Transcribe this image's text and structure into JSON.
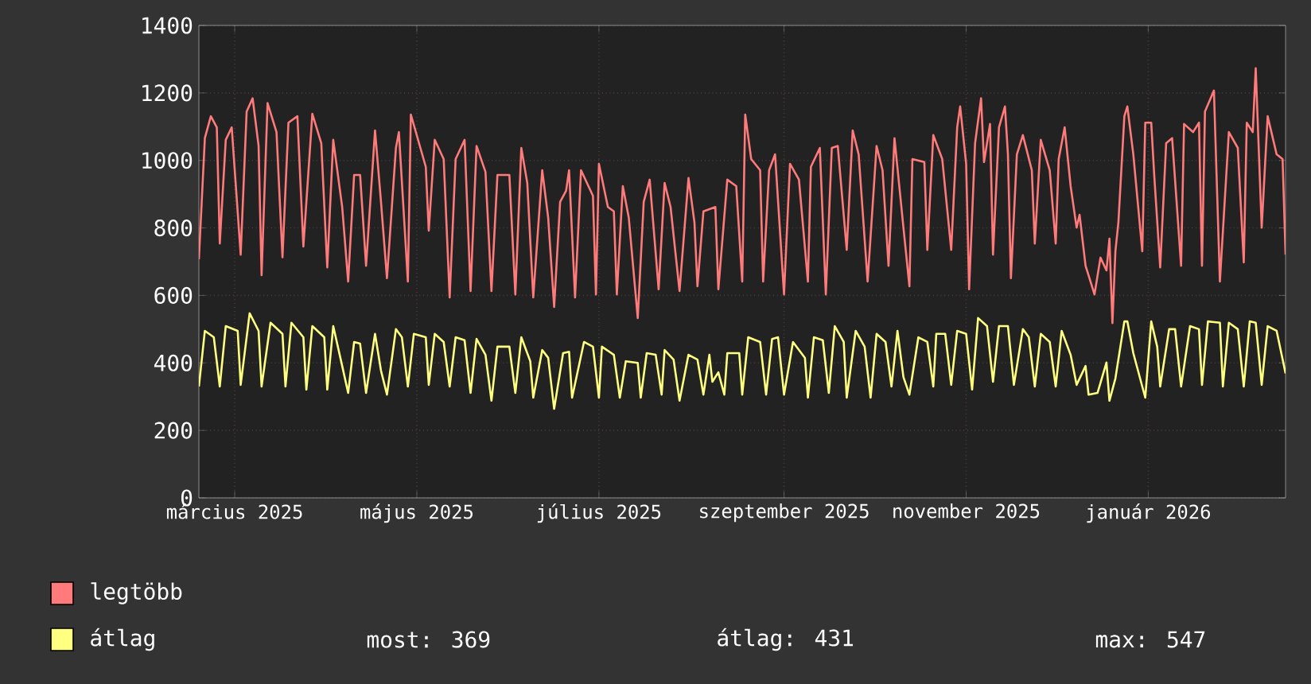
{
  "chart_data": {
    "type": "line",
    "xlim": [
      "2025-02-17",
      "2026-02-16"
    ],
    "ylim": [
      0,
      1400
    ],
    "xticks": [
      {
        "value": "2025-03-01",
        "label": "március 2025"
      },
      {
        "value": "2025-05-01",
        "label": "május 2025"
      },
      {
        "value": "2025-07-01",
        "label": "július 2025"
      },
      {
        "value": "2025-09-01",
        "label": "szeptember 2025"
      },
      {
        "value": "2025-11-01",
        "label": "november 2025"
      },
      {
        "value": "2026-01-01",
        "label": "január 2026"
      }
    ],
    "yticks": [
      0,
      200,
      400,
      600,
      800,
      1000,
      1200,
      1400
    ],
    "grid": true,
    "legend": "bottom",
    "series": [
      {
        "name": "legtöbb",
        "color": "#ff7b7b",
        "x": [
          "2025-02-17",
          "2025-02-19",
          "2025-02-21",
          "2025-02-23",
          "2025-02-24",
          "2025-02-26",
          "2025-02-28",
          "2025-03-03",
          "2025-03-05",
          "2025-03-07",
          "2025-03-09",
          "2025-03-10",
          "2025-03-12",
          "2025-03-15",
          "2025-03-17",
          "2025-03-19",
          "2025-03-22",
          "2025-03-24",
          "2025-03-27",
          "2025-03-30",
          "2025-04-01",
          "2025-04-03",
          "2025-04-06",
          "2025-04-08",
          "2025-04-10",
          "2025-04-12",
          "2025-04-14",
          "2025-04-17",
          "2025-04-19",
          "2025-04-21",
          "2025-04-24",
          "2025-04-25",
          "2025-04-28",
          "2025-04-29",
          "2025-05-04",
          "2025-05-05",
          "2025-05-07",
          "2025-05-10",
          "2025-05-12",
          "2025-05-14",
          "2025-05-17",
          "2025-05-19",
          "2025-05-21",
          "2025-05-24",
          "2025-05-26",
          "2025-05-28",
          "2025-06-01",
          "2025-06-03",
          "2025-06-05",
          "2025-06-07",
          "2025-06-09",
          "2025-06-12",
          "2025-06-14",
          "2025-06-16",
          "2025-06-18",
          "2025-06-20",
          "2025-06-21",
          "2025-06-23",
          "2025-06-25",
          "2025-06-29",
          "2025-06-30",
          "2025-07-01",
          "2025-07-04",
          "2025-07-06",
          "2025-07-07",
          "2025-07-09",
          "2025-07-11",
          "2025-07-14",
          "2025-07-16",
          "2025-07-18",
          "2025-07-21",
          "2025-07-23",
          "2025-07-25",
          "2025-07-28",
          "2025-07-31",
          "2025-08-02",
          "2025-08-03",
          "2025-08-05",
          "2025-08-09",
          "2025-08-10",
          "2025-08-13",
          "2025-08-16",
          "2025-08-18",
          "2025-08-19",
          "2025-08-21",
          "2025-08-24",
          "2025-08-25",
          "2025-08-27",
          "2025-08-29",
          "2025-09-01",
          "2025-09-03",
          "2025-09-06",
          "2025-09-09",
          "2025-09-10",
          "2025-09-13",
          "2025-09-15",
          "2025-09-17",
          "2025-09-19",
          "2025-09-22",
          "2025-09-24",
          "2025-09-26",
          "2025-09-29",
          "2025-10-02",
          "2025-10-04",
          "2025-10-06",
          "2025-10-08",
          "2025-10-11",
          "2025-10-13",
          "2025-10-14",
          "2025-10-18",
          "2025-10-19",
          "2025-10-21",
          "2025-10-22",
          "2025-10-24",
          "2025-10-27",
          "2025-10-29",
          "2025-10-30",
          "2025-11-01",
          "2025-11-02",
          "2025-11-04",
          "2025-11-06",
          "2025-11-07",
          "2025-11-09",
          "2025-11-10",
          "2025-11-12",
          "2025-11-14",
          "2025-11-15",
          "2025-11-16",
          "2025-11-18",
          "2025-11-20",
          "2025-11-23",
          "2025-11-24",
          "2025-11-26",
          "2025-11-29",
          "2025-12-01",
          "2025-12-02",
          "2025-12-04",
          "2025-12-06",
          "2025-12-08",
          "2025-12-09",
          "2025-12-11",
          "2025-12-14",
          "2025-12-16",
          "2025-12-18",
          "2025-12-19",
          "2025-12-20",
          "2025-12-21",
          "2025-12-22",
          "2025-12-24",
          "2025-12-25",
          "2025-12-27",
          "2025-12-30",
          "2025-12-31",
          "2026-01-02",
          "2026-01-03",
          "2026-01-05",
          "2026-01-07",
          "2026-01-09",
          "2026-01-12",
          "2026-01-13",
          "2026-01-16",
          "2026-01-18",
          "2026-01-19",
          "2026-01-20",
          "2026-01-23",
          "2026-01-25",
          "2026-01-28",
          "2026-01-31",
          "2026-02-02",
          "2026-02-03",
          "2026-02-05",
          "2026-02-06",
          "2026-02-08",
          "2026-02-10",
          "2026-02-13",
          "2026-02-15",
          "2026-02-16"
        ],
        "values": [
          707,
          1066,
          1131,
          1098,
          754,
          1061,
          1098,
          721,
          1145,
          1184,
          1043,
          660,
          1170,
          1084,
          713,
          1112,
          1131,
          745,
          1138,
          1051,
          683,
          1061,
          862,
          641,
          957,
          957,
          688,
          1089,
          877,
          651,
          1037,
          1084,
          641,
          1136,
          981,
          792,
          1061,
          1004,
          594,
          1004,
          1061,
          613,
          1043,
          966,
          613,
          957,
          957,
          603,
          1037,
          933,
          594,
          971,
          830,
          566,
          877,
          910,
          971,
          594,
          971,
          895,
          603,
          990,
          862,
          849,
          603,
          924,
          830,
          533,
          877,
          943,
          618,
          933,
          862,
          613,
          948,
          816,
          627,
          849,
          862,
          618,
          943,
          924,
          641,
          1136,
          1004,
          971,
          641,
          971,
          1018,
          603,
          990,
          943,
          641,
          981,
          1037,
          603,
          1037,
          1043,
          735,
          1089,
          1018,
          641,
          1043,
          971,
          688,
          1066,
          801,
          627,
          1004,
          995,
          735,
          1075,
          1051,
          1004,
          735,
          1098,
          1160,
          990,
          618,
          1051,
          1184,
          995,
          1108,
          721,
          1098,
          1160,
          1018,
          651,
          1018,
          1075,
          971,
          754,
          1061,
          971,
          754,
          1004,
          1098,
          924,
          801,
          839,
          688,
          603,
          712,
          674,
          768,
          518,
          731,
          816,
          1131,
          1160,
          1018,
          731,
          1112,
          1112,
          957,
          683,
          1051,
          1066,
          688,
          1108,
          1084,
          1112,
          688,
          1145,
          1207,
          641,
          1084,
          1037,
          698,
          1112,
          1084,
          1273,
          801,
          1131,
          1018,
          1004,
          721
        ]
      },
      {
        "name": "átlag",
        "color": "#ffff80",
        "x": [
          "2025-02-17",
          "2025-02-19",
          "2025-02-22",
          "2025-02-24",
          "2025-02-26",
          "2025-03-02",
          "2025-03-03",
          "2025-03-06",
          "2025-03-09",
          "2025-03-10",
          "2025-03-13",
          "2025-03-17",
          "2025-03-18",
          "2025-03-20",
          "2025-03-24",
          "2025-03-25",
          "2025-03-27",
          "2025-03-31",
          "2025-04-01",
          "2025-04-03",
          "2025-04-06",
          "2025-04-08",
          "2025-04-10",
          "2025-04-12",
          "2025-04-14",
          "2025-04-17",
          "2025-04-19",
          "2025-04-21",
          "2025-04-24",
          "2025-04-26",
          "2025-04-28",
          "2025-04-30",
          "2025-05-04",
          "2025-05-05",
          "2025-05-07",
          "2025-05-10",
          "2025-05-12",
          "2025-05-14",
          "2025-05-17",
          "2025-05-19",
          "2025-05-21",
          "2025-05-24",
          "2025-05-26",
          "2025-05-28",
          "2025-06-01",
          "2025-06-03",
          "2025-06-05",
          "2025-06-08",
          "2025-06-09",
          "2025-06-12",
          "2025-06-14",
          "2025-06-16",
          "2025-06-19",
          "2025-06-21",
          "2025-06-22",
          "2025-06-26",
          "2025-06-29",
          "2025-07-01",
          "2025-07-02",
          "2025-07-06",
          "2025-07-08",
          "2025-07-10",
          "2025-07-14",
          "2025-07-15",
          "2025-07-17",
          "2025-07-20",
          "2025-07-22",
          "2025-07-23",
          "2025-07-26",
          "2025-07-28",
          "2025-07-31",
          "2025-08-03",
          "2025-08-05",
          "2025-08-07",
          "2025-08-08",
          "2025-08-10",
          "2025-08-12",
          "2025-08-13",
          "2025-08-17",
          "2025-08-18",
          "2025-08-20",
          "2025-08-24",
          "2025-08-26",
          "2025-08-28",
          "2025-08-30",
          "2025-09-01",
          "2025-09-04",
          "2025-09-08",
          "2025-09-09",
          "2025-09-11",
          "2025-09-14",
          "2025-09-16",
          "2025-09-18",
          "2025-09-21",
          "2025-09-22",
          "2025-09-25",
          "2025-09-28",
          "2025-09-30",
          "2025-10-02",
          "2025-10-05",
          "2025-10-07",
          "2025-10-09",
          "2025-10-11",
          "2025-10-13",
          "2025-10-16",
          "2025-10-19",
          "2025-10-21",
          "2025-10-22",
          "2025-10-25",
          "2025-10-27",
          "2025-10-29",
          "2025-11-01",
          "2025-11-03",
          "2025-11-05",
          "2025-11-08",
          "2025-11-10",
          "2025-11-12",
          "2025-11-15",
          "2025-11-17",
          "2025-11-20",
          "2025-11-22",
          "2025-11-24",
          "2025-11-26",
          "2025-11-29",
          "2025-12-01",
          "2025-12-03",
          "2025-12-06",
          "2025-12-08",
          "2025-12-11",
          "2025-12-12",
          "2025-12-15",
          "2025-12-18",
          "2025-12-19",
          "2025-12-21",
          "2025-12-24",
          "2025-12-25",
          "2025-12-27",
          "2025-12-31",
          "2026-01-02",
          "2026-01-04",
          "2026-01-05",
          "2026-01-08",
          "2026-01-10",
          "2026-01-12",
          "2026-01-15",
          "2026-01-18",
          "2026-01-19",
          "2026-01-21",
          "2026-01-25",
          "2026-01-26",
          "2026-01-28",
          "2026-01-31",
          "2026-02-02",
          "2026-02-04",
          "2026-02-06",
          "2026-02-08",
          "2026-02-10",
          "2026-02-13",
          "2026-02-16"
        ],
        "values": [
          330,
          495,
          476,
          330,
          509,
          495,
          335,
          547,
          495,
          330,
          519,
          486,
          330,
          519,
          476,
          321,
          509,
          476,
          321,
          509,
          391,
          311,
          462,
          457,
          311,
          486,
          377,
          306,
          500,
          476,
          330,
          486,
          476,
          335,
          486,
          462,
          330,
          476,
          467,
          311,
          471,
          424,
          288,
          448,
          448,
          311,
          476,
          405,
          297,
          438,
          415,
          264,
          429,
          433,
          297,
          462,
          448,
          297,
          448,
          424,
          297,
          405,
          400,
          297,
          429,
          424,
          306,
          438,
          410,
          288,
          424,
          410,
          306,
          424,
          344,
          372,
          306,
          429,
          429,
          306,
          476,
          462,
          306,
          471,
          476,
          306,
          462,
          415,
          297,
          476,
          467,
          311,
          509,
          462,
          297,
          495,
          448,
          297,
          486,
          462,
          330,
          495,
          358,
          306,
          476,
          462,
          330,
          486,
          486,
          335,
          495,
          486,
          321,
          533,
          509,
          344,
          509,
          509,
          335,
          500,
          476,
          330,
          486,
          462,
          330,
          495,
          424,
          335,
          391,
          306,
          311,
          401,
          288,
          354,
          523,
          523,
          429,
          297,
          523,
          448,
          330,
          500,
          500,
          330,
          509,
          500,
          335,
          523,
          519,
          330,
          519,
          500,
          330,
          523,
          519,
          335,
          509,
          495,
          369
        ]
      }
    ],
    "annotations": [
      "most: 369",
      "átlag: 431",
      "max: 547"
    ]
  }
}
